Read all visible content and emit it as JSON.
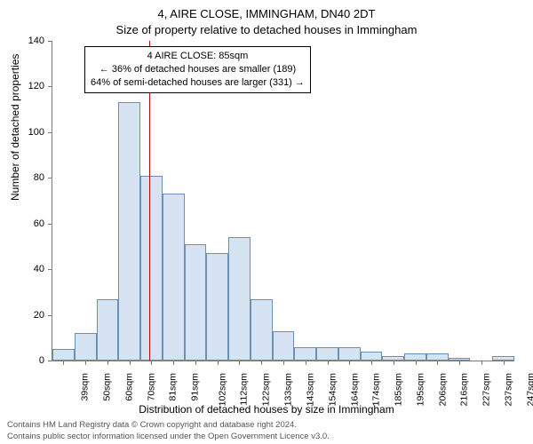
{
  "chart": {
    "type": "histogram",
    "title_line1": "4, AIRE CLOSE, IMMINGHAM, DN40 2DT",
    "title_line2": "Size of property relative to detached houses in Immingham",
    "ylabel": "Number of detached properties",
    "xlabel": "Distribution of detached houses by size in Immingham",
    "ylim": [
      0,
      140
    ],
    "ytick_step": 20,
    "yticks": [
      0,
      20,
      40,
      60,
      80,
      100,
      120,
      140
    ],
    "categories": [
      "39sqm",
      "50sqm",
      "60sqm",
      "70sqm",
      "81sqm",
      "91sqm",
      "102sqm",
      "112sqm",
      "122sqm",
      "133sqm",
      "143sqm",
      "154sqm",
      "164sqm",
      "174sqm",
      "185sqm",
      "195sqm",
      "206sqm",
      "216sqm",
      "227sqm",
      "237sqm",
      "247sqm"
    ],
    "values": [
      5,
      12,
      27,
      113,
      81,
      73,
      51,
      47,
      54,
      27,
      13,
      6,
      6,
      6,
      4,
      2,
      3,
      3,
      1,
      0,
      2
    ],
    "bar_fill_color": "#d6e3f3",
    "bar_border_color": "#6b8fb5",
    "axis_color": "#7a7a7a",
    "background_color": "#ffffff",
    "bar_width": 1.0,
    "reference_line": {
      "index": 4.4,
      "color": "#cc0000"
    },
    "info_box": {
      "line1": "4 AIRE CLOSE: 85sqm",
      "line2": "← 36% of detached houses are smaller (189)",
      "line3": "64% of semi-detached houses are larger (331) →"
    },
    "title_fontsize": 13,
    "label_fontsize": 12,
    "tick_fontsize": 11
  },
  "footer": {
    "line1": "Contains HM Land Registry data © Crown copyright and database right 2024.",
    "line2": "Contains public sector information licensed under the Open Government Licence v3.0."
  }
}
